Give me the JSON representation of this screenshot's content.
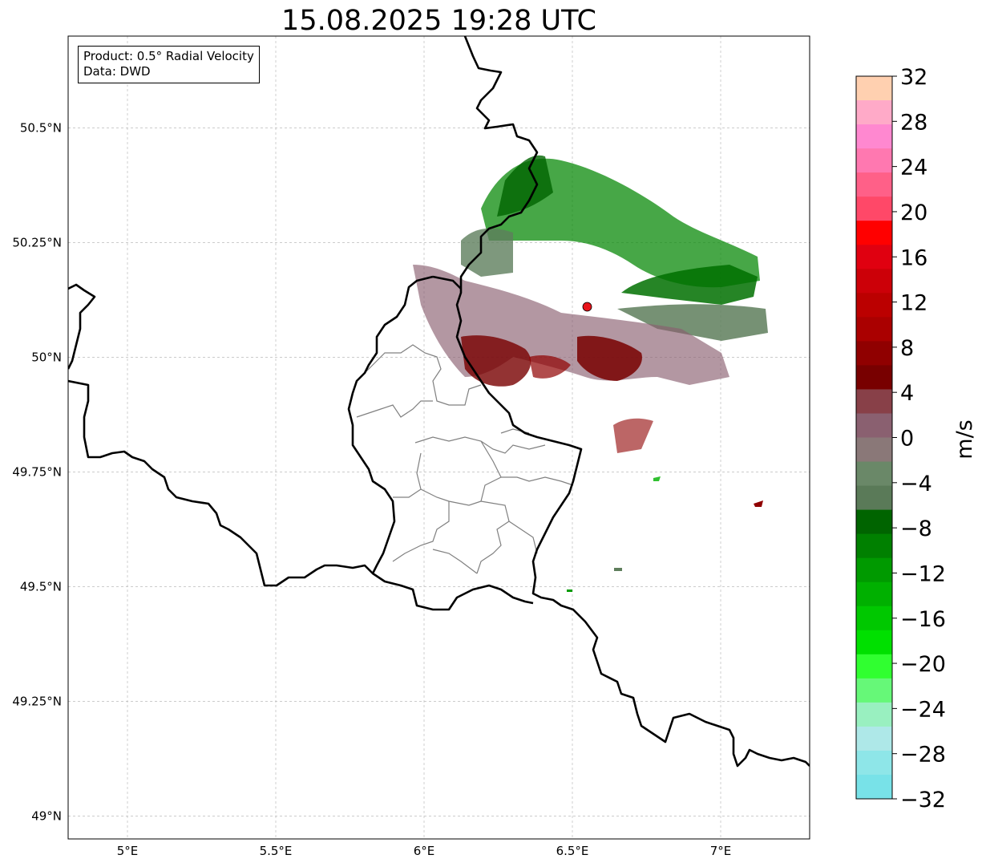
{
  "title": "15.08.2025 19:28 UTC",
  "info_box": {
    "product": "Product: 0.5° Radial Velocity",
    "data_source": "Data: DWD"
  },
  "map": {
    "lon_range": [
      4.8,
      7.3
    ],
    "lat_range": [
      48.95,
      50.7
    ],
    "lon_ticks": [
      {
        "value": 5.0,
        "label": "5°E"
      },
      {
        "value": 5.5,
        "label": "5.5°E"
      },
      {
        "value": 6.0,
        "label": "6°E"
      },
      {
        "value": 6.5,
        "label": "6.5°E"
      },
      {
        "value": 7.0,
        "label": "7°E"
      }
    ],
    "lat_ticks": [
      {
        "value": 50.5,
        "label": "50.5°N"
      },
      {
        "value": 50.25,
        "label": "50.25°N"
      },
      {
        "value": 50.0,
        "label": "50°N"
      },
      {
        "value": 49.75,
        "label": "49.75°N"
      },
      {
        "value": 49.5,
        "label": "49.5°N"
      },
      {
        "value": 49.25,
        "label": "49.25°N"
      },
      {
        "value": 49.0,
        "label": "49°N"
      }
    ],
    "gridlines": true,
    "radar_site": {
      "lon": 6.55,
      "lat": 50.11,
      "color": "#e8141b"
    }
  },
  "colorbar": {
    "unit": "m/s",
    "range": [
      -32,
      32
    ],
    "tick_labels": [
      "32",
      "28",
      "24",
      "20",
      "16",
      "12",
      "8",
      "4",
      "0",
      "−4",
      "−8",
      "−12",
      "−16",
      "−20",
      "−24",
      "−28",
      "−32"
    ],
    "colors_top_to_bottom": [
      "#ffd0b0",
      "#ffaac8",
      "#ff88d0",
      "#ff78b0",
      "#ff6088",
      "#ff4868",
      "#ff0000",
      "#e00010",
      "#cc0008",
      "#bb0000",
      "#aa0000",
      "#900000",
      "#780000",
      "#884048",
      "#8a6070",
      "#8a7878",
      "#6a8868",
      "#5a7a58",
      "#006400",
      "#008000",
      "#009a00",
      "#00b000",
      "#00c800",
      "#00e000",
      "#30ff30",
      "#66f878",
      "#99f0c0",
      "#aee8e8",
      "#8ee6e8",
      "#78e2e8"
    ]
  }
}
